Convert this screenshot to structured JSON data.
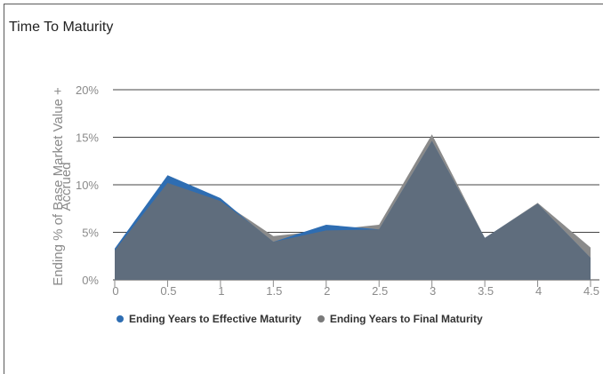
{
  "panel": {
    "title": "Time To Maturity"
  },
  "chart_data": {
    "type": "area",
    "title": "",
    "xlabel": "",
    "ylabel": "Ending % of Base Market Value + Accrued",
    "ylabel_lines": [
      "Ending % of Base Market Value +",
      "Accrued"
    ],
    "x": [
      0,
      0.5,
      1,
      1.5,
      2,
      2.5,
      3,
      3.5,
      4,
      4.5
    ],
    "xticks": [
      "0",
      "0.5",
      "1",
      "1.5",
      "2",
      "2.5",
      "3",
      "3.5",
      "4",
      "4.5"
    ],
    "yticks": [
      "0%",
      "5%",
      "10%",
      "15%",
      "20%"
    ],
    "xlim": [
      0,
      4.5
    ],
    "ylim": [
      0,
      20
    ],
    "grid": true,
    "legend_position": "bottom",
    "series": [
      {
        "name": "Ending Years to Final Maturity",
        "color": "#8a8a8a",
        "x": [
          0,
          0.5,
          1,
          1.3,
          1.5,
          2,
          2.5,
          3,
          3.5,
          4,
          4.5
        ],
        "values": [
          3.1,
          10.2,
          8.3,
          6.1,
          4.6,
          5.2,
          5.8,
          15.3,
          4.4,
          8.1,
          3.4
        ]
      },
      {
        "name": "Ending Years to Effective Maturity",
        "color": "#2e6db2",
        "x": [
          0,
          0.5,
          1,
          1.3,
          1.5,
          2,
          2.5,
          3,
          3.5,
          4,
          4.5
        ],
        "values": [
          3.3,
          11.0,
          8.6,
          5.8,
          4.0,
          5.8,
          5.3,
          14.6,
          4.4,
          8.0,
          2.3
        ]
      }
    ],
    "overlap_color": "#5f6d7d"
  },
  "legend": {
    "items": [
      {
        "label": "Ending Years to Effective Maturity",
        "color": "#2e6db2"
      },
      {
        "label": "Ending Years to Final Maturity",
        "color": "#7a7a7a"
      }
    ]
  }
}
